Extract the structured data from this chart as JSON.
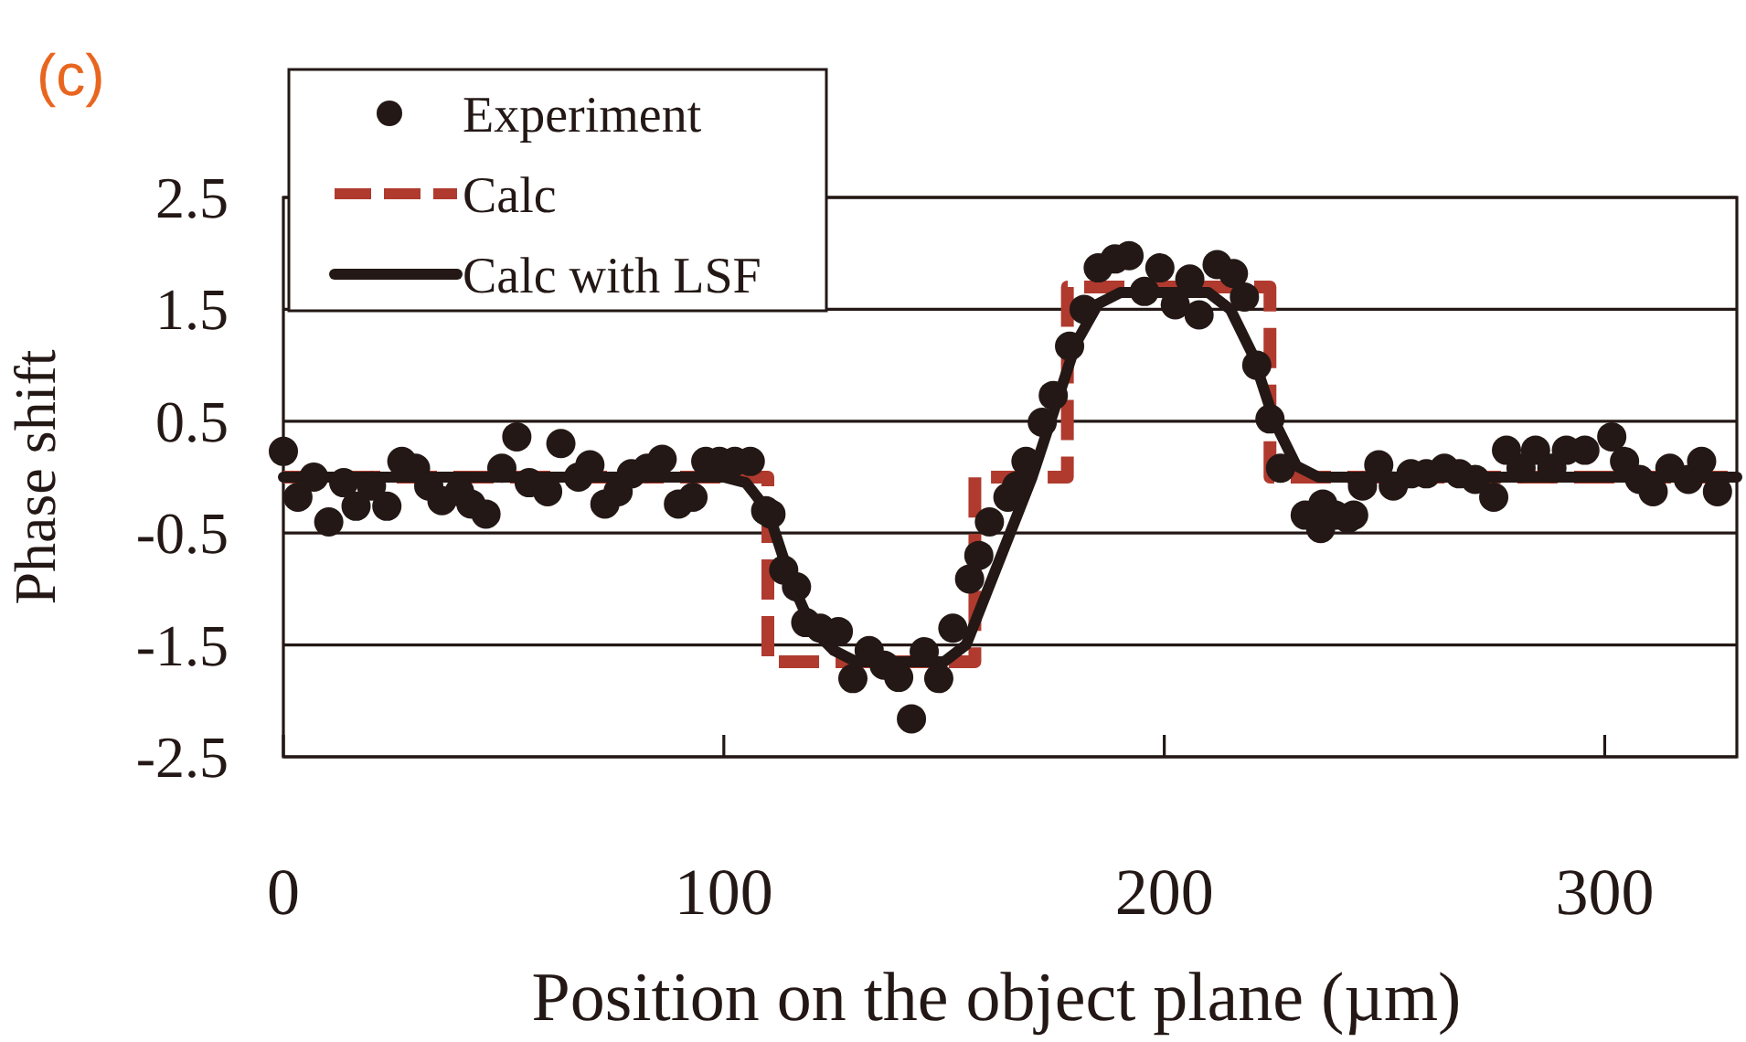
{
  "chart_data": {
    "type": "scatter",
    "title": "(c)",
    "xlabel": "Position on the object plane (µm)",
    "ylabel": "Phase shift",
    "xlim": [
      0,
      330
    ],
    "xticks": [
      0,
      100,
      200,
      300
    ],
    "ylim": [
      -2.5,
      2.5
    ],
    "yticks": [
      -2.5,
      -1.5,
      -0.5,
      0.5,
      1.5,
      2.5
    ],
    "grid": "y",
    "legend": "top left",
    "series": [
      {
        "name": "Experiment",
        "marker": "circle",
        "color": "#231815",
        "x": [
          0,
          3.3,
          6.9,
          10.3,
          13.7,
          16.5,
          20,
          23.5,
          26.9,
          30,
          33,
          36,
          40,
          42.6,
          46,
          49.6,
          53,
          55.8,
          60,
          63,
          67,
          69.6,
          73,
          76,
          79,
          82.6,
          86,
          89.7,
          93,
          95.9,
          99,
          102.5,
          106,
          109.5,
          110.7,
          113.6,
          116.5,
          118.6,
          121.9,
          126,
          129.3,
          133,
          136.4,
          139.7,
          142.6,
          145.5,
          148.8,
          152,
          155.8,
          157.9,
          160.3,
          164.5,
          166.5,
          168.6,
          172.3,
          174.8,
          178.5,
          181.8,
          185,
          188.8,
          192,
          195.5,
          199,
          202.5,
          205.8,
          207.9,
          212,
          215.7,
          218.2,
          221,
          224,
          226.4,
          232,
          235.5,
          236,
          238.8,
          241.7,
          243,
          245,
          248.7,
          252,
          256,
          259.5,
          263.6,
          267,
          270.6,
          274.8,
          277.7,
          281,
          284.3,
          288,
          291.3,
          295.5,
          301.6,
          304.5,
          307.9,
          311,
          314.8,
          319,
          322,
          325.6
        ],
        "values": [
          0.23,
          -0.18,
          0,
          -0.4,
          -0.05,
          -0.26,
          -0.08,
          -0.26,
          0.14,
          0.08,
          -0.08,
          -0.21,
          -0.13,
          -0.24,
          -0.33,
          0.08,
          0.36,
          -0.05,
          -0.13,
          0.3,
          0,
          0.11,
          -0.24,
          -0.13,
          0.03,
          0.08,
          0.16,
          -0.24,
          -0.18,
          0.14,
          0.14,
          0.14,
          0.14,
          -0.3,
          -0.33,
          -0.83,
          -0.98,
          -1.3,
          -1.35,
          -1.38,
          -1.8,
          -1.55,
          -1.68,
          -1.79,
          -2.16,
          -1.56,
          -1.8,
          -1.35,
          -0.91,
          -0.7,
          -0.4,
          -0.18,
          -0.08,
          0.14,
          0.49,
          0.73,
          1.17,
          1.5,
          1.87,
          1.95,
          1.98,
          1.66,
          1.87,
          1.54,
          1.77,
          1.45,
          1.9,
          1.82,
          1.61,
          1,
          0.52,
          0.08,
          -0.34,
          -0.46,
          -0.24,
          -0.34,
          -0.37,
          -0.34,
          -0.08,
          0.11,
          -0.08,
          0.03,
          0.03,
          0.08,
          0.03,
          -0.02,
          -0.18,
          0.24,
          0.08,
          0.24,
          0.08,
          0.24,
          0.24,
          0.36,
          0.14,
          -0.02,
          -0.13,
          0.08,
          -0.02,
          0.14,
          -0.13
        ]
      },
      {
        "name": "Calc",
        "type": "line",
        "line_style": "dashed",
        "color": "#b03a2e",
        "x": [
          0,
          110,
          110,
          157,
          157,
          178,
          178,
          224,
          224,
          330
        ],
        "values": [
          0,
          0,
          -1.65,
          -1.65,
          0,
          0,
          1.7,
          1.7,
          0,
          0
        ]
      },
      {
        "name": "Calc with LSF",
        "type": "line",
        "line_style": "solid",
        "color": "#231815",
        "x": [
          0,
          100,
          105,
          110,
          115,
          120,
          125,
          130,
          150,
          155,
          160,
          165,
          170,
          175,
          180,
          185,
          190,
          210,
          215,
          220,
          225,
          230,
          235,
          240,
          330
        ],
        "values": [
          0,
          0,
          -0.05,
          -0.3,
          -0.9,
          -1.35,
          -1.55,
          -1.65,
          -1.65,
          -1.5,
          -1,
          -0.5,
          0,
          0.6,
          1.2,
          1.55,
          1.65,
          1.65,
          1.5,
          1.1,
          0.5,
          0.1,
          0,
          0,
          0
        ]
      }
    ]
  }
}
